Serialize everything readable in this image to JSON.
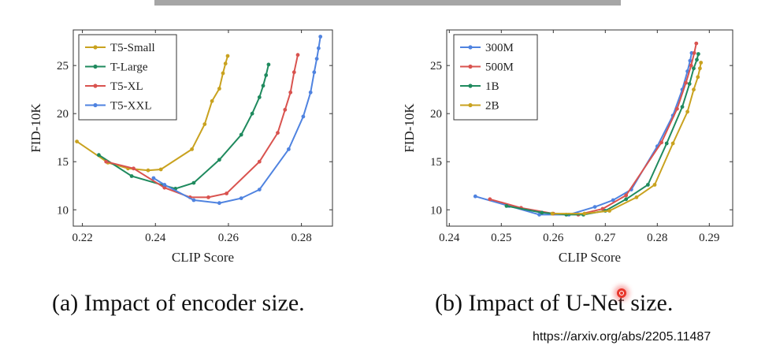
{
  "captions": {
    "a": "(a) Impact of encoder size.",
    "b": "(b) Impact of U-Net size."
  },
  "source_url": "https://arxiv.org/abs/2205.11487",
  "chart_data": [
    {
      "type": "line",
      "title": "",
      "xlabel": "CLIP Score",
      "ylabel": "FID-10K",
      "xlim": [
        0.2175,
        0.2885
      ],
      "ylim": [
        8.3,
        28.7
      ],
      "xticks": [
        0.22,
        0.24,
        0.26,
        0.28
      ],
      "xtick_labels": [
        "0.22",
        "0.24",
        "0.26",
        "0.28"
      ],
      "yticks": [
        10,
        15,
        20,
        25
      ],
      "ytick_labels": [
        "10",
        "15",
        "20",
        "25"
      ],
      "grid": false,
      "legend_position": "top-left",
      "series": [
        {
          "name": "T5-Small",
          "color": "#c9a21f",
          "x": [
            0.2185,
            0.227,
            0.2325,
            0.238,
            0.2415,
            0.25,
            0.2535,
            0.2555,
            0.2575,
            0.2585,
            0.2592,
            0.2598
          ],
          "y": [
            17.1,
            14.9,
            14.3,
            14.1,
            14.2,
            16.3,
            18.9,
            21.3,
            22.6,
            24.2,
            25.2,
            26.0
          ]
        },
        {
          "name": "T-Large",
          "color": "#1f8a5e",
          "x": [
            0.2245,
            0.2335,
            0.2455,
            0.2505,
            0.2575,
            0.2635,
            0.2665,
            0.2685,
            0.2695,
            0.2703,
            0.271
          ],
          "y": [
            15.7,
            13.5,
            12.2,
            12.8,
            15.2,
            17.8,
            20.0,
            21.7,
            22.9,
            24.0,
            25.1
          ]
        },
        {
          "name": "T5-XL",
          "color": "#d9534f",
          "x": [
            0.2265,
            0.234,
            0.2425,
            0.2495,
            0.2545,
            0.2595,
            0.2685,
            0.2735,
            0.2755,
            0.277,
            0.278,
            0.279
          ],
          "y": [
            15.0,
            14.3,
            12.3,
            11.3,
            11.3,
            11.7,
            15.0,
            18.0,
            20.4,
            22.2,
            24.3,
            26.1
          ]
        },
        {
          "name": "T5-XXL",
          "color": "#4f83e0",
          "x": [
            0.2395,
            0.2425,
            0.2505,
            0.2575,
            0.2635,
            0.2685,
            0.2765,
            0.2805,
            0.2825,
            0.2835,
            0.2842,
            0.2847,
            0.2852
          ],
          "y": [
            13.3,
            12.6,
            11.0,
            10.7,
            11.2,
            12.1,
            16.3,
            19.7,
            22.2,
            24.3,
            25.7,
            26.8,
            28.0
          ]
        }
      ]
    },
    {
      "type": "line",
      "title": "",
      "xlabel": "CLIP Score",
      "ylabel": "FID-10K",
      "xlim": [
        0.2395,
        0.2945
      ],
      "ylim": [
        8.3,
        28.7
      ],
      "xticks": [
        0.24,
        0.25,
        0.26,
        0.27,
        0.28,
        0.29
      ],
      "xtick_labels": [
        "0.24",
        "0.25",
        "0.26",
        "0.27",
        "0.28",
        "0.29"
      ],
      "yticks": [
        10,
        15,
        20,
        25
      ],
      "ytick_labels": [
        "10",
        "15",
        "20",
        "25"
      ],
      "grid": false,
      "legend_position": "top-left",
      "series": [
        {
          "name": "300M",
          "color": "#4f83e0",
          "x": [
            0.245,
            0.2515,
            0.2573,
            0.263,
            0.268,
            0.2715,
            0.275,
            0.28,
            0.283,
            0.2848,
            0.2858,
            0.2863,
            0.2866
          ],
          "y": [
            11.4,
            10.4,
            9.5,
            9.5,
            10.3,
            11.0,
            12.1,
            16.6,
            19.8,
            22.5,
            24.4,
            25.5,
            26.3
          ]
        },
        {
          "name": "500M",
          "color": "#d9534f",
          "x": [
            0.2478,
            0.2538,
            0.26,
            0.2648,
            0.2695,
            0.274,
            0.2808,
            0.2838,
            0.2855,
            0.2865,
            0.2871,
            0.2875
          ],
          "y": [
            11.1,
            10.2,
            9.6,
            9.5,
            10.1,
            11.5,
            17.0,
            20.5,
            23.2,
            25.0,
            26.3,
            27.3
          ]
        },
        {
          "name": "1B",
          "color": "#1f8a5e",
          "x": [
            0.251,
            0.2578,
            0.2625,
            0.2658,
            0.27,
            0.274,
            0.2782,
            0.2818,
            0.2848,
            0.2862,
            0.287,
            0.2876,
            0.2879
          ],
          "y": [
            10.4,
            9.7,
            9.5,
            9.5,
            9.9,
            11.1,
            12.6,
            16.9,
            20.7,
            23.1,
            24.7,
            25.6,
            26.2
          ]
        },
        {
          "name": "2B",
          "color": "#c9a21f",
          "x": [
            0.2598,
            0.266,
            0.2708,
            0.276,
            0.2795,
            0.283,
            0.2858,
            0.287,
            0.2878,
            0.2882,
            0.2884
          ],
          "y": [
            9.6,
            9.6,
            9.9,
            11.3,
            12.6,
            16.9,
            20.2,
            22.5,
            23.8,
            24.7,
            25.3
          ]
        }
      ]
    }
  ]
}
